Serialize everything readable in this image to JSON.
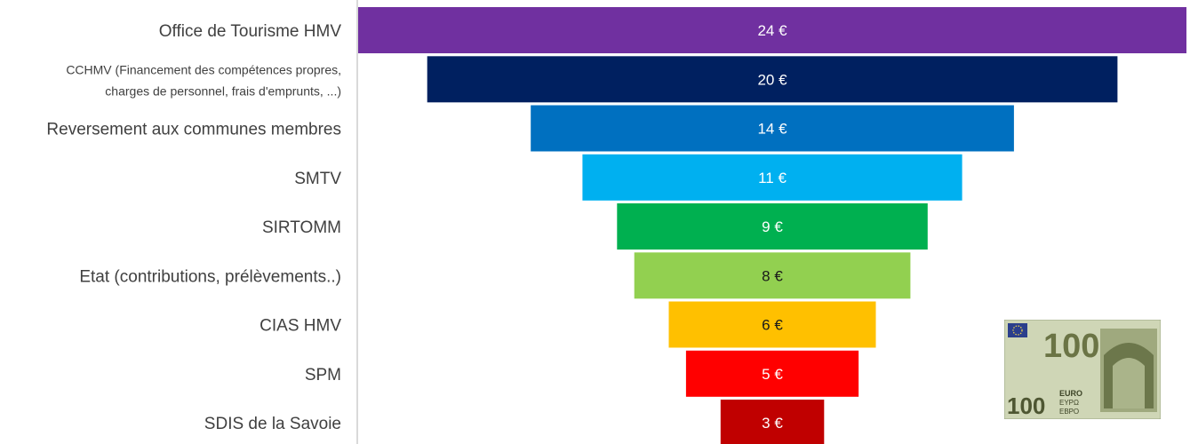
{
  "chart_data": {
    "type": "bar",
    "orientation": "horizontal-funnel",
    "categories": [
      "Office de Tourisme HMV",
      "CCHMV (Financement des compétences propres, charges de personnel, frais d'emprunts, ...)",
      "Reversement aux communes membres",
      "SMTV",
      "SIRTOMM",
      "Etat (contributions, prélèvements..)",
      "CIAS HMV",
      "SPM",
      "SDIS de la Savoie"
    ],
    "category_lines": [
      [
        "Office de Tourisme HMV"
      ],
      [
        "CCHMV (Financement des compétences propres,",
        "charges de personnel, frais d'emprunts, ...)"
      ],
      [
        "Reversement aux communes membres"
      ],
      [
        "SMTV"
      ],
      [
        "SIRTOMM"
      ],
      [
        "Etat (contributions, prélèvements..)"
      ],
      [
        "CIAS HMV"
      ],
      [
        "SPM"
      ],
      [
        "SDIS de la Savoie"
      ]
    ],
    "values": [
      24,
      20,
      14,
      11,
      9,
      8,
      6,
      5,
      3
    ],
    "value_labels": [
      "24 €",
      "20 €",
      "14 €",
      "11 €",
      "9 €",
      "8 €",
      "6 €",
      "5 €",
      "3 €"
    ],
    "colors": [
      "#7030a0",
      "#002060",
      "#0070c0",
      "#00b0f0",
      "#00b050",
      "#92d050",
      "#ffc000",
      "#ff0000",
      "#c00000"
    ],
    "label_colors": [
      "#ffffff",
      "#ffffff",
      "#ffffff",
      "#ffffff",
      "#ffffff",
      "#1a1a1a",
      "#1a1a1a",
      "#ffffff",
      "#ffffff"
    ]
  },
  "banknote": {
    "denomination": "100",
    "currency_text": "EURO",
    "currency_text_alt": "ΕΥΡΩ",
    "currency_text_cyr": "ЕВРО"
  }
}
